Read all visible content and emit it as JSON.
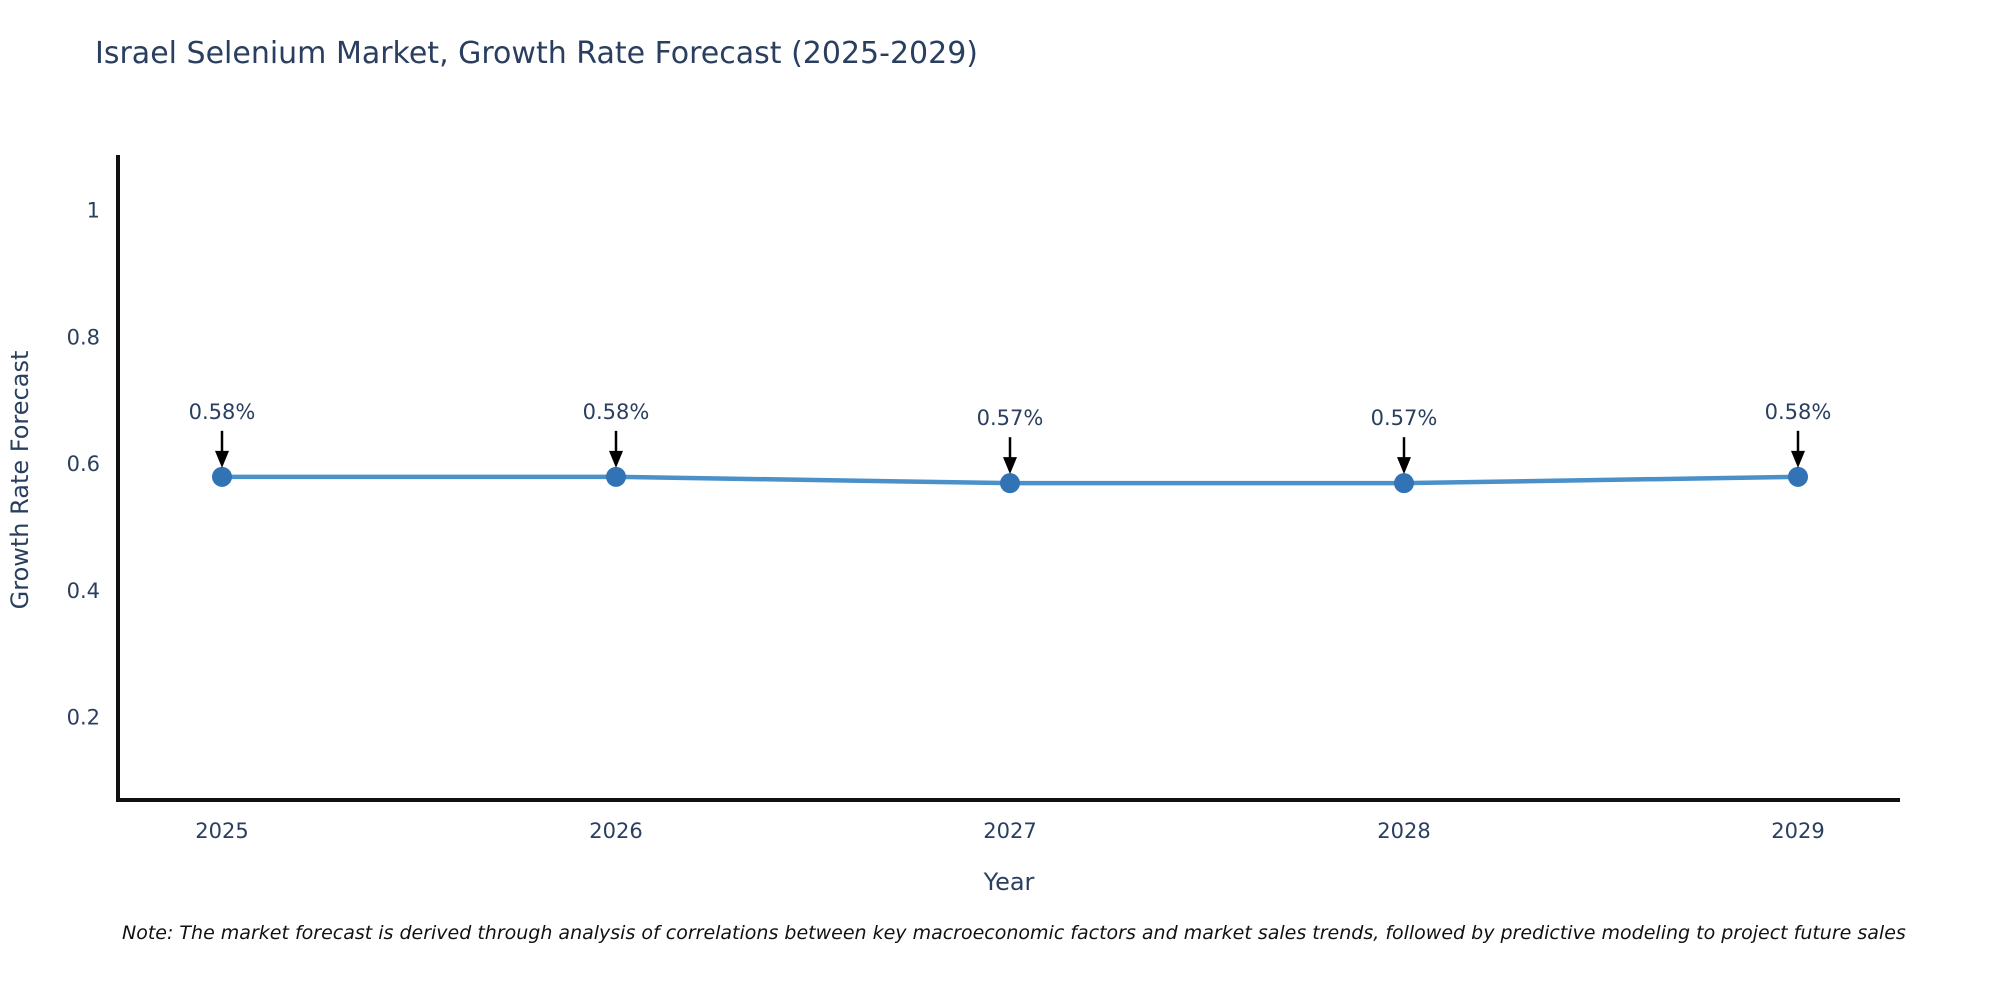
{
  "page": {
    "note": "Note: The market forecast is derived through analysis of correlations between key macroeconomic factors and market sales trends, followed by predictive modeling to project future sales"
  },
  "chart_data": {
    "type": "line",
    "title": "Israel Selenium Market, Growth Rate Forecast (2025-2029)",
    "categories": [
      "2025",
      "2026",
      "2027",
      "2028",
      "2029"
    ],
    "values": [
      0.58,
      0.58,
      0.57,
      0.57,
      0.58
    ],
    "point_labels": [
      "0.58%",
      "0.58%",
      "0.57%",
      "0.57%",
      "0.58%"
    ],
    "xlabel": "Year",
    "ylabel": "Growth Rate Forecast",
    "yticks": [
      0.2,
      0.4,
      0.6,
      0.8,
      1
    ],
    "ytick_labels": [
      "0.2",
      "0.4",
      "0.6",
      "0.8",
      "1"
    ],
    "ylim": [
      0.07,
      1.08
    ],
    "grid": false,
    "legend": "none",
    "colors": {
      "line": "#4a90c9",
      "marker": "#3173b5",
      "axis": "#101010",
      "text": "#2a3f5f",
      "annotation_arrow": "#000000"
    }
  }
}
